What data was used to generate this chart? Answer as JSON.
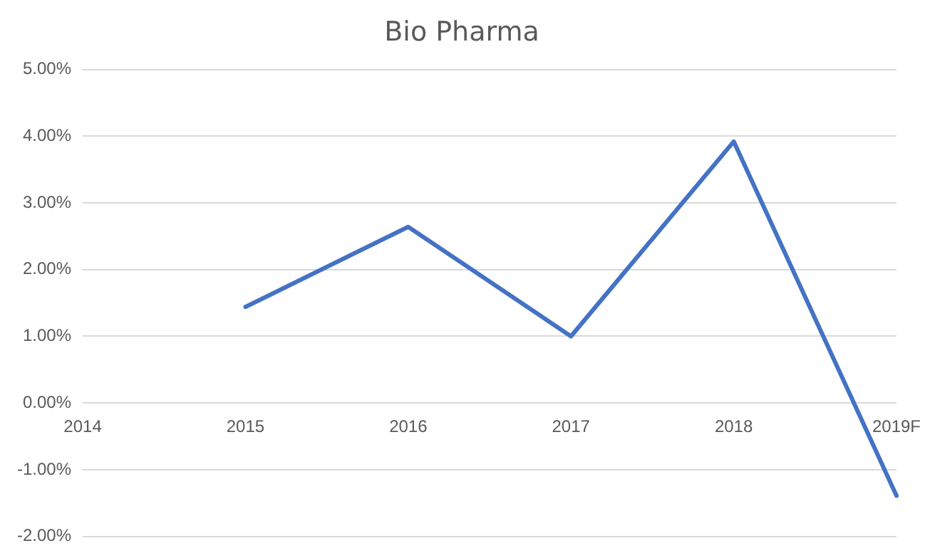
{
  "chart_data": {
    "type": "line",
    "title": "Bio Pharma",
    "categories": [
      "2014",
      "2015",
      "2016",
      "2017",
      "2018",
      "2019F"
    ],
    "series": [
      {
        "color": "#4472c4",
        "values": [
          null,
          1.44,
          2.64,
          1.0,
          3.92,
          -1.39
        ]
      }
    ],
    "ylim": [
      -2,
      5
    ],
    "yticks": [
      {
        "value": -2,
        "label": "-2.00%"
      },
      {
        "value": -1,
        "label": "-1.00%"
      },
      {
        "value": 0,
        "label": "0.00%"
      },
      {
        "value": 1,
        "label": "1.00%"
      },
      {
        "value": 2,
        "label": "2.00%"
      },
      {
        "value": 3,
        "label": "3.00%"
      },
      {
        "value": 4,
        "label": "4.00%"
      },
      {
        "value": 5,
        "label": "5.00%"
      }
    ],
    "grid": "y",
    "legend": false,
    "marker": "none",
    "line_style": "solid"
  }
}
